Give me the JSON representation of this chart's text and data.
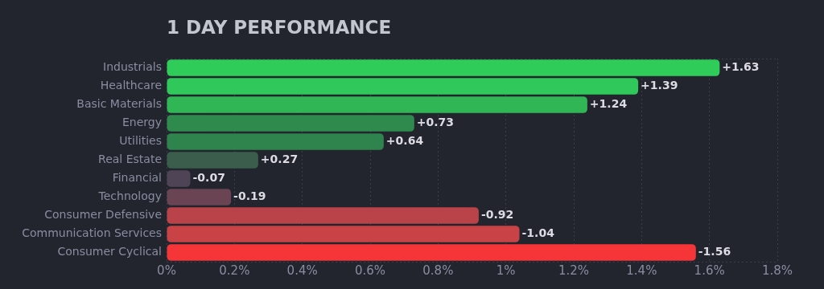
{
  "chart_data": {
    "type": "bar",
    "orientation": "horizontal",
    "title": "1 DAY PERFORMANCE",
    "categories": [
      "Industrials",
      "Healthcare",
      "Basic Materials",
      "Energy",
      "Utilities",
      "Real Estate",
      "Financial",
      "Technology",
      "Consumer Defensive",
      "Communication Services",
      "Consumer Cyclical"
    ],
    "values": [
      1.63,
      1.39,
      1.24,
      0.73,
      0.64,
      0.27,
      -0.07,
      -0.19,
      -0.92,
      -1.04,
      -1.56
    ],
    "base": [
      0,
      0,
      0,
      0,
      0,
      0,
      0.07,
      0.19,
      0.92,
      1.04,
      1.56
    ],
    "value_labels": [
      "+1.63",
      "+1.39",
      "+1.24",
      "+0.73",
      "+0.64",
      "+0.27",
      "-0.07",
      "-0.19",
      "-0.92",
      "-1.04",
      "-1.56"
    ],
    "colors": [
      "#30cc5a",
      "#30c85a",
      "#30b655",
      "#2f8a4e",
      "#2f844d",
      "#3a5e4b",
      "#4f4455",
      "#6a4452",
      "#b94348",
      "#c94246",
      "#f63538"
    ],
    "xlim": [
      0,
      1.8
    ],
    "xticks": [
      {
        "value": 0,
        "label": "0%"
      },
      {
        "value": 0.2,
        "label": "0.2%"
      },
      {
        "value": 0.4,
        "label": "0.4%"
      },
      {
        "value": 0.6,
        "label": "0.6%"
      },
      {
        "value": 0.8,
        "label": "0.8%"
      },
      {
        "value": 1,
        "label": "1%"
      },
      {
        "value": 1.2,
        "label": "1.2%"
      },
      {
        "value": 1.4,
        "label": "1.4%"
      },
      {
        "value": 1.6,
        "label": "1.6%"
      },
      {
        "value": 1.8,
        "label": "1.8%"
      }
    ],
    "grid": "x"
  }
}
